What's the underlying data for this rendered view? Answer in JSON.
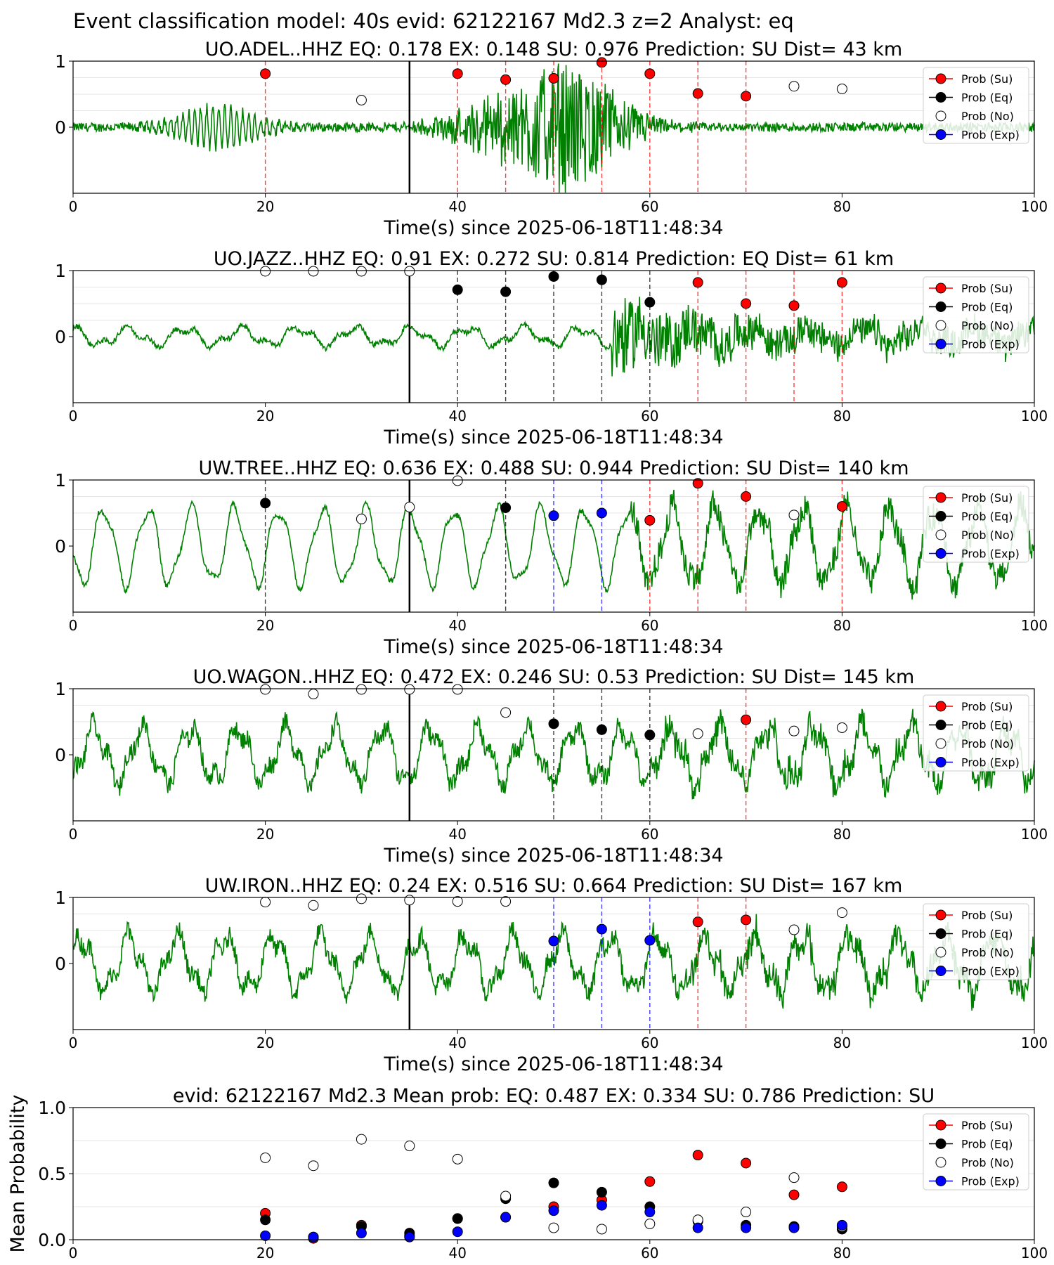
{
  "suptitle": "Event classification model: 40s evid: 62122167 Md2.3 z=2 Analyst: eq",
  "colors": {
    "su": "#ff0000",
    "eq": "#000000",
    "no": "#ffffff",
    "exp": "#0000ff",
    "waveform": "#008000",
    "onset_line": "#000000",
    "grid": "#e6e6e6"
  },
  "legend_labels": [
    "Prob (Su)",
    "Prob (Eq)",
    "Prob (No)",
    "Prob (Exp)"
  ],
  "chart_data": [
    {
      "type": "scatter",
      "name": "UO.ADEL..HHZ",
      "title": "UO.ADEL..HHZ   EQ: 0.178  EX: 0.148  SU: 0.976   Prediction: SU    Dist= 43 km",
      "xlabel": "Time(s) since 2025-06-18T11:48:34",
      "ylabel": "",
      "xlim": [
        0,
        100
      ],
      "ylim": [
        -1,
        1
      ],
      "xticks": [
        "0",
        "20",
        "40",
        "60",
        "80",
        "100"
      ],
      "yticks": [
        "0",
        "1"
      ],
      "legend_position": "upper right",
      "onset_time": 35,
      "waveform_style": "emergent",
      "vlines": [
        {
          "x": 20,
          "c": "su"
        },
        {
          "x": 40,
          "c": "su"
        },
        {
          "x": 45,
          "c": "su"
        },
        {
          "x": 50,
          "c": "su"
        },
        {
          "x": 55,
          "c": "su"
        },
        {
          "x": 60,
          "c": "su"
        },
        {
          "x": 65,
          "c": "su"
        },
        {
          "x": 70,
          "c": "su"
        }
      ],
      "series": [
        {
          "name": "Prob (Su)",
          "x": [
            20,
            40,
            45,
            50,
            55,
            60,
            65,
            70
          ],
          "y": [
            0.81,
            0.81,
            0.72,
            0.74,
            0.98,
            0.81,
            0.51,
            0.47
          ]
        },
        {
          "name": "Prob (Eq)",
          "x": [],
          "y": []
        },
        {
          "name": "Prob (No)",
          "x": [
            30,
            75,
            80
          ],
          "y": [
            0.41,
            0.62,
            0.58
          ]
        },
        {
          "name": "Prob (Exp)",
          "x": [],
          "y": []
        }
      ]
    },
    {
      "type": "scatter",
      "name": "UO.JAZZ..HHZ",
      "title": "UO.JAZZ..HHZ   EQ: 0.91  EX: 0.272  SU: 0.814   Prediction: EQ    Dist= 61 km",
      "xlabel": "Time(s) since 2025-06-18T11:48:34",
      "ylabel": "",
      "xlim": [
        0,
        100
      ],
      "ylim": [
        -1,
        1
      ],
      "xticks": [
        "0",
        "20",
        "40",
        "60",
        "80",
        "100"
      ],
      "yticks": [
        "0",
        "1"
      ],
      "legend_position": "upper right",
      "onset_time": 35,
      "waveform_style": "longperiod_burst",
      "vlines": [
        {
          "x": 40,
          "c": "eq"
        },
        {
          "x": 45,
          "c": "eq"
        },
        {
          "x": 50,
          "c": "eq"
        },
        {
          "x": 55,
          "c": "eq"
        },
        {
          "x": 60,
          "c": "eq"
        },
        {
          "x": 65,
          "c": "su"
        },
        {
          "x": 70,
          "c": "su"
        },
        {
          "x": 75,
          "c": "su"
        },
        {
          "x": 80,
          "c": "su"
        }
      ],
      "series": [
        {
          "name": "Prob (Su)",
          "x": [
            65,
            70,
            75,
            80
          ],
          "y": [
            0.82,
            0.5,
            0.47,
            0.82
          ]
        },
        {
          "name": "Prob (Eq)",
          "x": [
            40,
            45,
            50,
            55,
            60
          ],
          "y": [
            0.71,
            0.68,
            0.91,
            0.86,
            0.52
          ]
        },
        {
          "name": "Prob (No)",
          "x": [
            20,
            25,
            30,
            35
          ],
          "y": [
            0.99,
            0.99,
            0.99,
            0.99
          ]
        },
        {
          "name": "Prob (Exp)",
          "x": [],
          "y": []
        }
      ]
    },
    {
      "type": "scatter",
      "name": "UW.TREE..HHZ",
      "title": "UW.TREE..HHZ   EQ: 0.636  EX: 0.488  SU: 0.944   Prediction: SU    Dist= 140 km",
      "xlabel": "Time(s) since 2025-06-18T11:48:34",
      "ylabel": "",
      "xlim": [
        0,
        100
      ],
      "ylim": [
        -1,
        1
      ],
      "xticks": [
        "0",
        "20",
        "40",
        "60",
        "80",
        "100"
      ],
      "yticks": [
        "0",
        "1"
      ],
      "legend_position": "upper right",
      "onset_time": 35,
      "waveform_style": "longperiod",
      "vlines": [
        {
          "x": 20,
          "c": "eq"
        },
        {
          "x": 45,
          "c": "eq"
        },
        {
          "x": 50,
          "c": "exp"
        },
        {
          "x": 55,
          "c": "exp"
        },
        {
          "x": 60,
          "c": "su"
        },
        {
          "x": 65,
          "c": "su"
        },
        {
          "x": 70,
          "c": "su"
        },
        {
          "x": 80,
          "c": "su"
        }
      ],
      "series": [
        {
          "name": "Prob (Su)",
          "x": [
            60,
            65,
            70,
            80
          ],
          "y": [
            0.39,
            0.95,
            0.75,
            0.6
          ]
        },
        {
          "name": "Prob (Eq)",
          "x": [
            20,
            45
          ],
          "y": [
            0.65,
            0.58
          ]
        },
        {
          "name": "Prob (No)",
          "x": [
            30,
            35,
            40,
            75
          ],
          "y": [
            0.41,
            0.59,
            0.99,
            0.47
          ]
        },
        {
          "name": "Prob (Exp)",
          "x": [
            50,
            55
          ],
          "y": [
            0.46,
            0.5
          ]
        }
      ]
    },
    {
      "type": "scatter",
      "name": "UO.WAGON..HHZ",
      "title": "UO.WAGON..HHZ   EQ: 0.472  EX: 0.246  SU: 0.53   Prediction: SU    Dist= 145 km",
      "xlabel": "Time(s) since 2025-06-18T11:48:34",
      "ylabel": "",
      "xlim": [
        0,
        100
      ],
      "ylim": [
        -1,
        1
      ],
      "xticks": [
        "0",
        "20",
        "40",
        "60",
        "80",
        "100"
      ],
      "yticks": [
        "0",
        "1"
      ],
      "legend_position": "upper right",
      "onset_time": 35,
      "waveform_style": "noisy_longperiod",
      "vlines": [
        {
          "x": 50,
          "c": "eq"
        },
        {
          "x": 55,
          "c": "eq"
        },
        {
          "x": 60,
          "c": "eq"
        },
        {
          "x": 70,
          "c": "su"
        }
      ],
      "series": [
        {
          "name": "Prob (Su)",
          "x": [
            70
          ],
          "y": [
            0.53
          ]
        },
        {
          "name": "Prob (Eq)",
          "x": [
            50,
            55,
            60
          ],
          "y": [
            0.47,
            0.38,
            0.3
          ]
        },
        {
          "name": "Prob (No)",
          "x": [
            20,
            25,
            30,
            35,
            40,
            45,
            65,
            75,
            80
          ],
          "y": [
            0.99,
            0.92,
            0.99,
            0.99,
            0.99,
            0.64,
            0.32,
            0.36,
            0.41
          ]
        },
        {
          "name": "Prob (Exp)",
          "x": [],
          "y": []
        }
      ]
    },
    {
      "type": "scatter",
      "name": "UW.IRON..HHZ",
      "title": "UW.IRON..HHZ   EQ: 0.24  EX: 0.516  SU: 0.664   Prediction: SU    Dist= 167 km",
      "xlabel": "Time(s) since 2025-06-18T11:48:34",
      "ylabel": "",
      "xlim": [
        0,
        100
      ],
      "ylim": [
        -1,
        1
      ],
      "xticks": [
        "0",
        "20",
        "40",
        "60",
        "80",
        "100"
      ],
      "yticks": [
        "0",
        "1"
      ],
      "legend_position": "upper right",
      "onset_time": 35,
      "waveform_style": "noisy_longperiod",
      "vlines": [
        {
          "x": 50,
          "c": "exp"
        },
        {
          "x": 55,
          "c": "exp"
        },
        {
          "x": 60,
          "c": "exp"
        },
        {
          "x": 65,
          "c": "su"
        },
        {
          "x": 70,
          "c": "su"
        }
      ],
      "series": [
        {
          "name": "Prob (Su)",
          "x": [
            65,
            70
          ],
          "y": [
            0.63,
            0.66
          ]
        },
        {
          "name": "Prob (Eq)",
          "x": [],
          "y": []
        },
        {
          "name": "Prob (No)",
          "x": [
            20,
            25,
            30,
            35,
            40,
            45,
            75,
            80
          ],
          "y": [
            0.93,
            0.88,
            0.98,
            0.96,
            0.94,
            0.94,
            0.51,
            0.77
          ]
        },
        {
          "name": "Prob (Exp)",
          "x": [
            50,
            55,
            60
          ],
          "y": [
            0.34,
            0.52,
            0.35
          ]
        }
      ]
    },
    {
      "type": "scatter",
      "name": "mean",
      "title": "evid: 62122167  Md2.3   Mean prob:   EQ: 0.487  EX: 0.334  SU: 0.786   Prediction: SU",
      "xlabel": "",
      "ylabel": "Mean Probability",
      "xlim": [
        0,
        100
      ],
      "ylim": [
        0,
        1
      ],
      "xticks": [
        "0",
        "20",
        "40",
        "60",
        "80",
        "100"
      ],
      "yticks": [
        "0.0",
        "0.5",
        "1.0"
      ],
      "legend_position": "upper right",
      "series": [
        {
          "name": "Prob (Su)",
          "x": [
            20,
            25,
            30,
            35,
            40,
            45,
            50,
            55,
            60,
            65,
            70,
            75,
            80
          ],
          "y": [
            0.2,
            0.01,
            0.11,
            0.03,
            0.16,
            0.17,
            0.25,
            0.3,
            0.44,
            0.64,
            0.58,
            0.34,
            0.4
          ]
        },
        {
          "name": "Prob (Eq)",
          "x": [
            20,
            25,
            30,
            35,
            40,
            45,
            50,
            55,
            60,
            65,
            70,
            75,
            80
          ],
          "y": [
            0.15,
            0.02,
            0.1,
            0.05,
            0.16,
            0.31,
            0.43,
            0.36,
            0.25,
            0.14,
            0.11,
            0.1,
            0.08
          ]
        },
        {
          "name": "Prob (No)",
          "x": [
            20,
            25,
            30,
            35,
            40,
            45,
            50,
            55,
            60,
            65,
            70,
            75,
            80
          ],
          "y": [
            0.62,
            0.56,
            0.76,
            0.71,
            0.61,
            0.33,
            0.09,
            0.08,
            0.12,
            0.15,
            0.21,
            0.47,
            0.1
          ]
        },
        {
          "name": "Prob (Exp)",
          "x": [
            20,
            25,
            30,
            35,
            40,
            45,
            50,
            55,
            60,
            65,
            70,
            75,
            80
          ],
          "y": [
            0.03,
            0.02,
            0.05,
            0.02,
            0.06,
            0.17,
            0.22,
            0.26,
            0.21,
            0.09,
            0.09,
            0.09,
            0.11
          ]
        }
      ]
    }
  ]
}
